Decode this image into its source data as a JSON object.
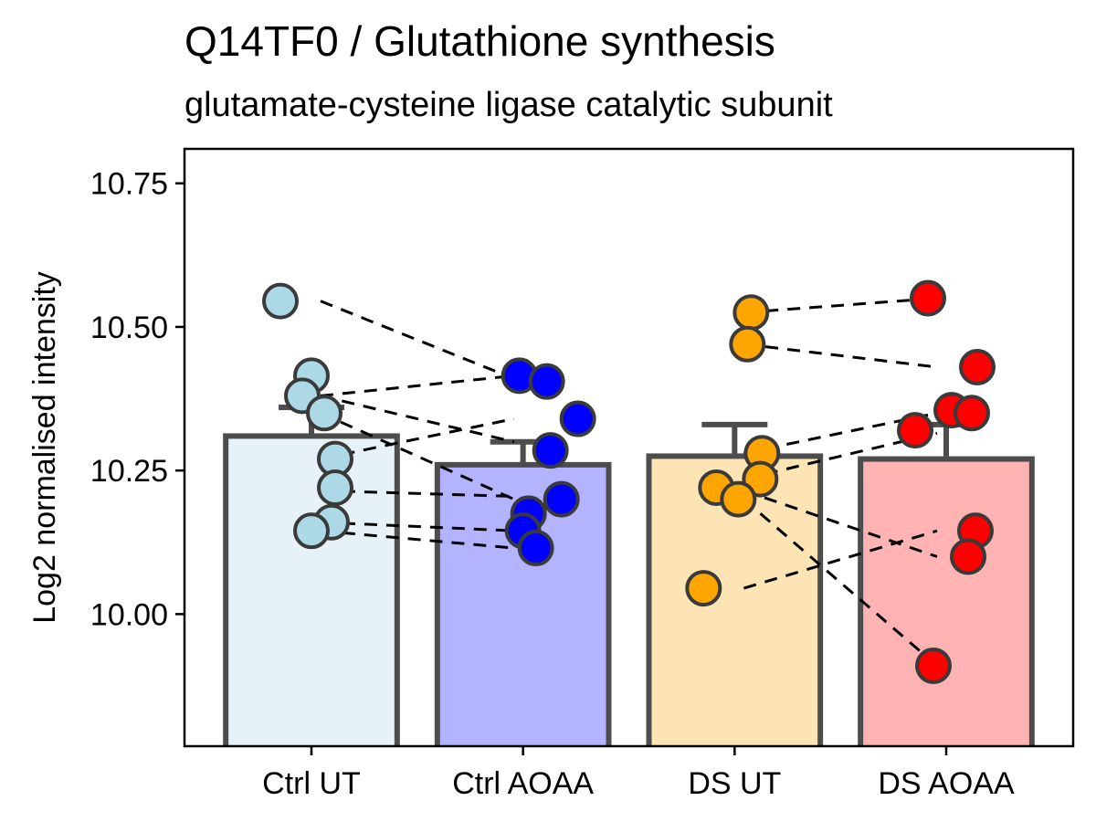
{
  "chart_data": {
    "type": "bar",
    "title": "Q14TF0 / Glutathione synthesis",
    "subtitle": "glutamate-cysteine ligase catalytic subunit",
    "xlabel": "",
    "ylabel": "Log2 normalised intensity",
    "ylim": [
      9.77,
      10.81
    ],
    "yticks": [
      10.0,
      10.25,
      10.5,
      10.75
    ],
    "ytick_labels": [
      "10.00",
      "10.25",
      "10.50",
      "10.75"
    ],
    "grid": false,
    "categories": [
      "Ctrl UT",
      "Ctrl AOAA",
      "DS UT",
      "DS AOAA"
    ],
    "bar_colors": [
      "#e6f2f8",
      "#b3b3ff",
      "#fde4b5",
      "#ffb3b3"
    ],
    "point_colors": [
      "#add8e6",
      "#0000ff",
      "#ffa500",
      "#ff0000"
    ],
    "bar_edge_color": "#4d4d4d",
    "values": [
      10.31,
      10.26,
      10.275,
      10.27
    ],
    "error_upper": [
      10.36,
      10.3,
      10.33,
      10.33
    ],
    "points": [
      [
        10.545,
        10.415,
        10.38,
        10.35,
        10.27,
        10.22,
        10.16,
        10.145
      ],
      [
        10.415,
        10.405,
        10.34,
        10.285,
        10.2,
        10.175,
        10.145,
        10.115
      ],
      [
        10.525,
        10.47,
        10.28,
        10.235,
        10.22,
        10.2,
        10.045
      ],
      [
        10.55,
        10.43,
        10.355,
        10.35,
        10.32,
        10.145,
        10.1,
        9.91
      ]
    ],
    "pairs": [
      [
        10.545,
        10.41
      ],
      [
        10.38,
        10.415
      ],
      [
        10.38,
        10.3
      ],
      [
        10.35,
        10.2
      ],
      [
        10.27,
        10.34
      ],
      [
        10.215,
        10.205
      ],
      [
        10.16,
        10.145
      ],
      [
        10.145,
        10.115
      ],
      [
        10.525,
        10.55
      ],
      [
        10.47,
        10.43
      ],
      [
        10.28,
        10.35
      ],
      [
        10.235,
        10.315
      ],
      [
        10.215,
        10.1
      ],
      [
        10.2,
        9.91
      ],
      [
        10.045,
        10.145
      ]
    ]
  }
}
